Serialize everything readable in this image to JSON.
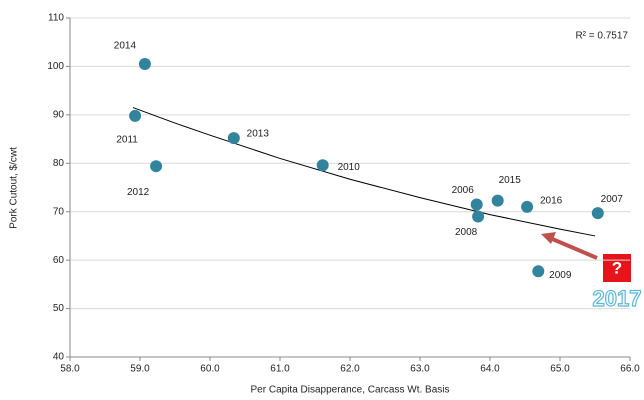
{
  "chart_data": {
    "type": "scatter",
    "x_label": "Per Capita Disapperance, Carcass Wt. Basis",
    "y_label": "Pork Cutout, $/cwt",
    "annotation": "R² = 0.7517",
    "callout": "?",
    "callout_year": "2017",
    "color": "#31849b",
    "labels": [
      "2014",
      "2011",
      "2012",
      "2013",
      "2010",
      "2006",
      "2008",
      "2015",
      "2016",
      "2007",
      "2009"
    ],
    "x": [
      59.07,
      58.93,
      59.23,
      60.34,
      61.61,
      63.81,
      63.83,
      64.11,
      64.53,
      65.54,
      64.69
    ],
    "values": [
      100.5,
      89.8,
      79.4,
      85.2,
      79.6,
      71.5,
      69.0,
      72.3,
      71.0,
      69.7,
      57.7
    ],
    "trendline": {
      "x": [
        58.9,
        59.5,
        60.0,
        61.0,
        62.0,
        63.0,
        64.0,
        65.0,
        65.5
      ],
      "values": [
        91.5,
        88.3,
        85.8,
        81.0,
        76.7,
        72.9,
        69.4,
        66.4,
        65.0
      ]
    },
    "xlim": [
      58.0,
      66.0
    ],
    "xticks": [
      {
        "value": 58,
        "label": "58.0"
      },
      {
        "value": 59,
        "label": "59.0"
      },
      {
        "value": 60,
        "label": "60.0"
      },
      {
        "value": 61,
        "label": "61.0"
      },
      {
        "value": 62,
        "label": "62.0"
      },
      {
        "value": 63,
        "label": "63.0"
      },
      {
        "value": 64,
        "label": "64.0"
      },
      {
        "value": 65,
        "label": "65.0"
      },
      {
        "value": 66,
        "label": "66.0"
      }
    ],
    "ylim": [
      40,
      110
    ],
    "yticks": [
      40,
      50,
      60,
      70,
      80,
      90,
      100,
      110
    ],
    "grid": true
  }
}
